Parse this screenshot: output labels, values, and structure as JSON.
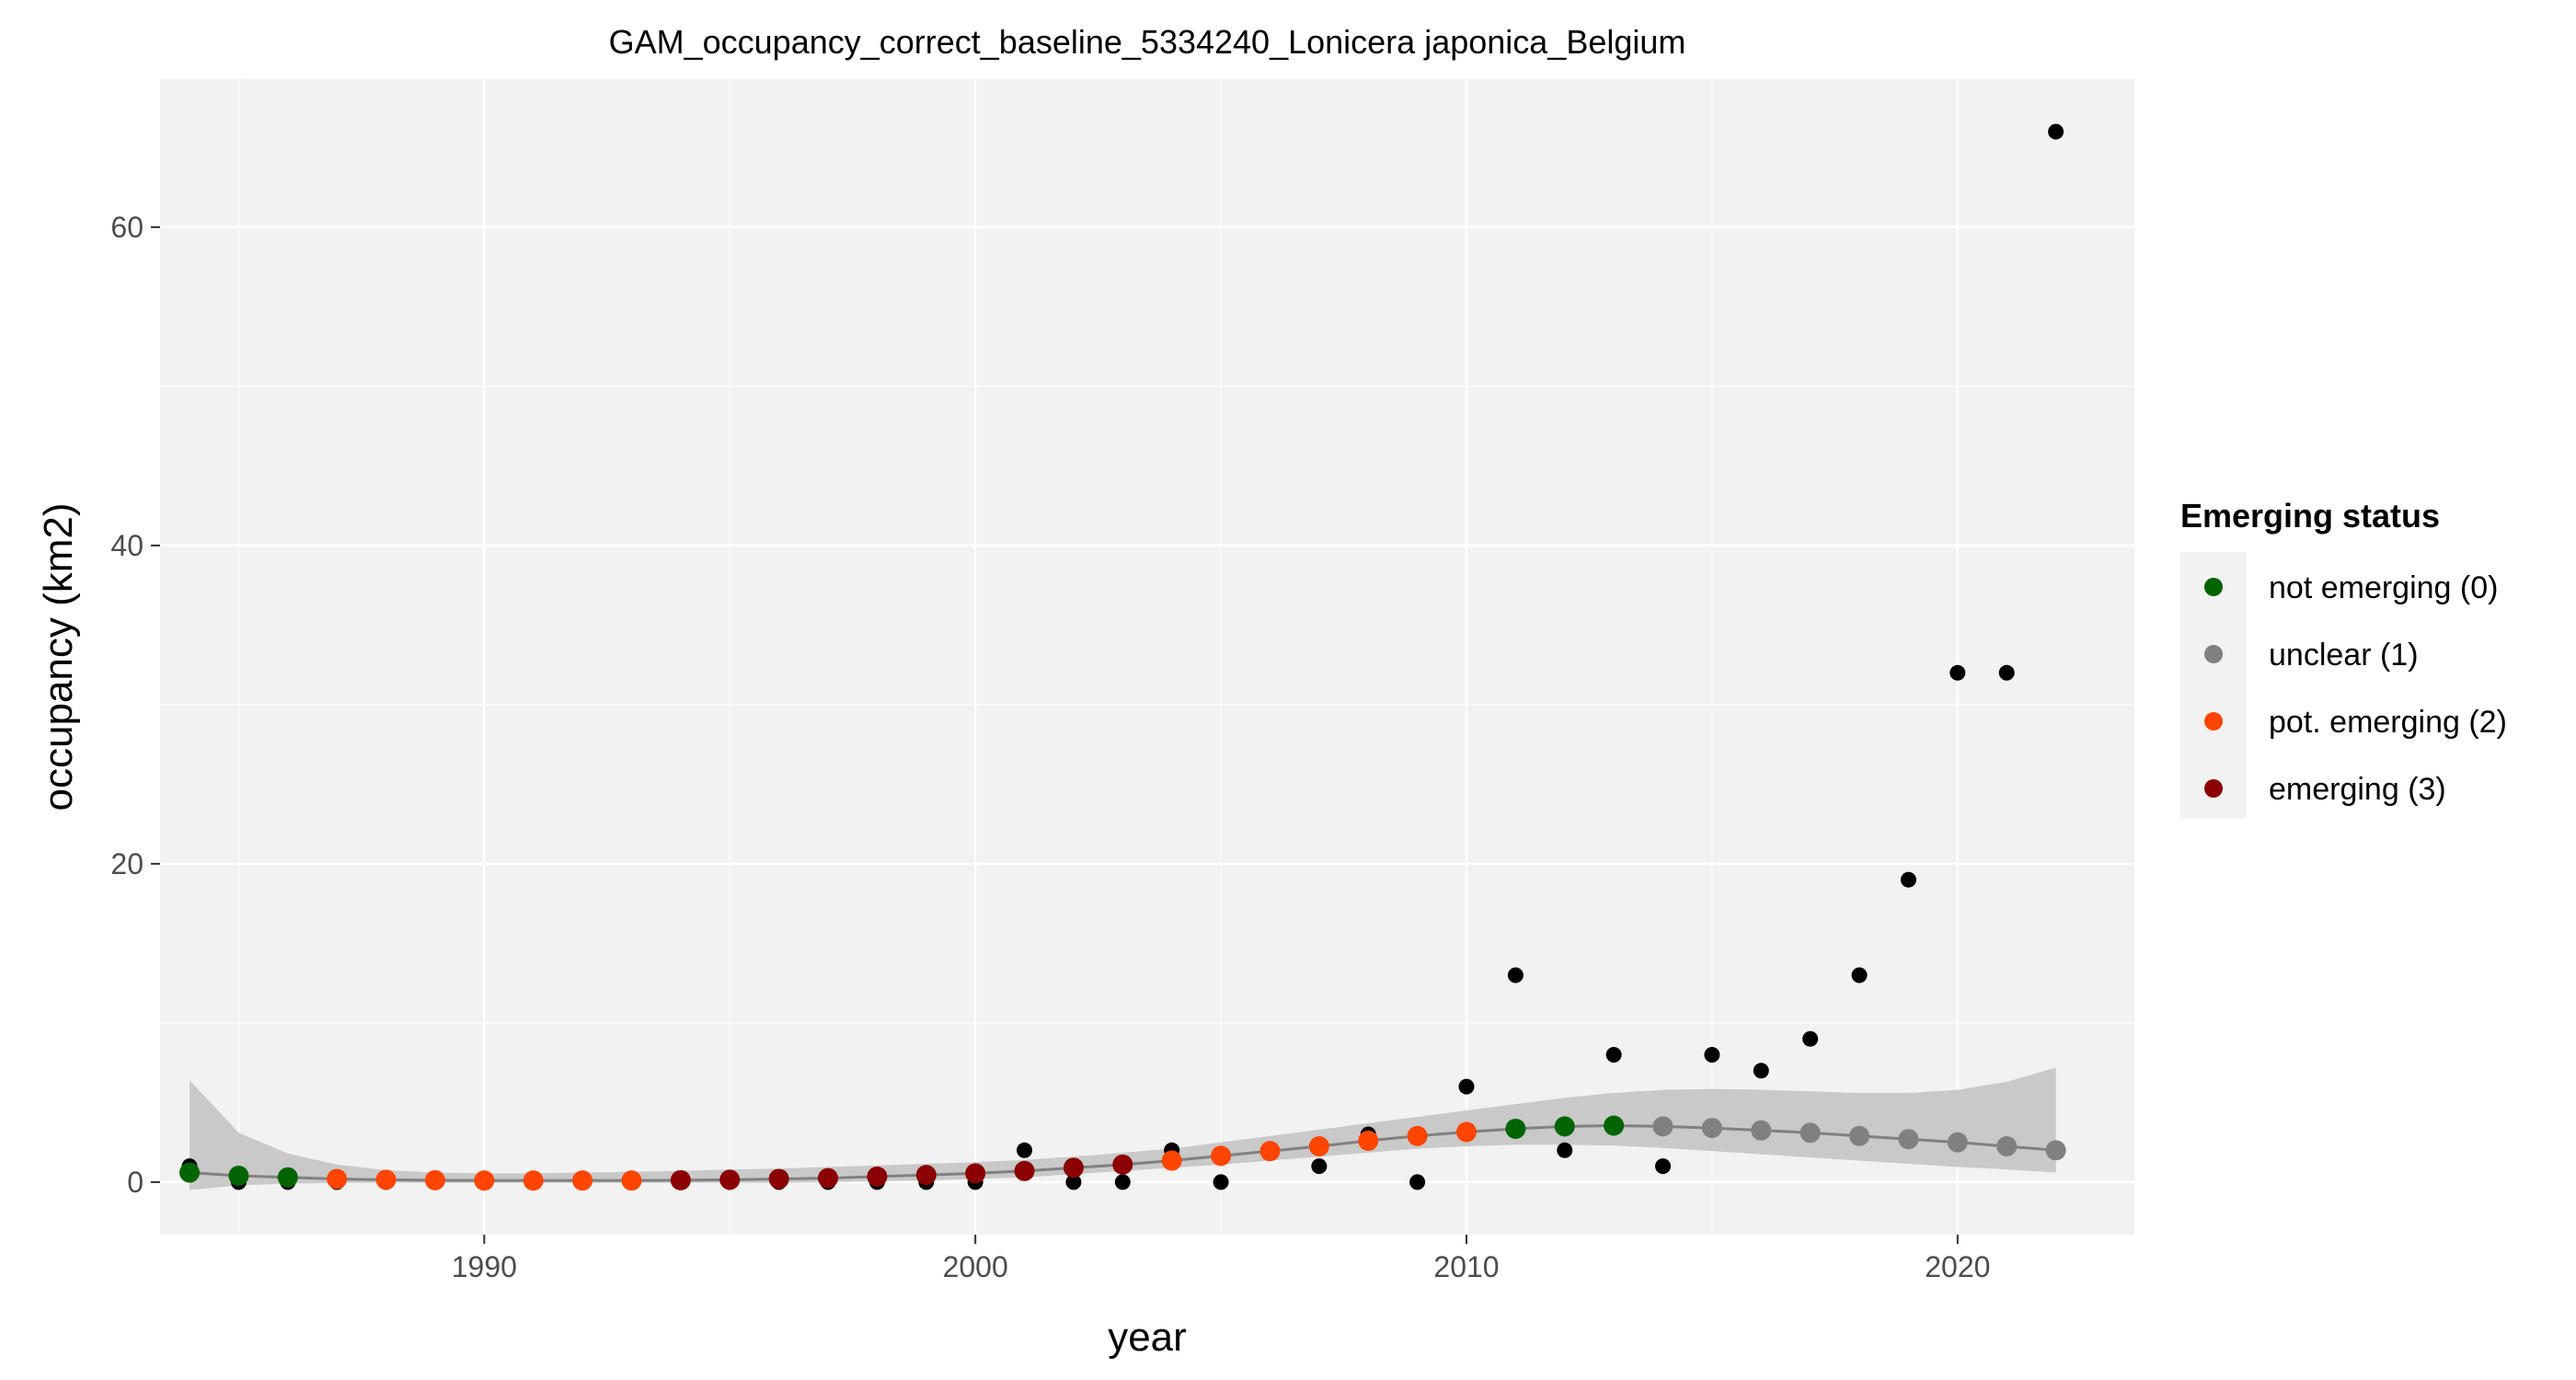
{
  "chart_data": {
    "type": "scatter",
    "title": "GAM_occupancy_correct_baseline_5334240_Lonicera japonica_Belgium",
    "xlabel": "year",
    "ylabel": "occupancy (km2)",
    "xlim": [
      1983.4,
      2023.6
    ],
    "ylim": [
      -3.3,
      69.3
    ],
    "x_ticks": [
      1990,
      2000,
      2010,
      2020
    ],
    "y_ticks": [
      0,
      20,
      40,
      60
    ],
    "grid": true,
    "legend": {
      "title": "Emerging status",
      "position": "right",
      "entries": [
        {
          "label": "not emerging (0)",
          "color": "#006400"
        },
        {
          "label": "unclear (1)",
          "color": "#808080"
        },
        {
          "label": "pot. emerging (2)",
          "color": "#ff4500"
        },
        {
          "label": "emerging (3)",
          "color": "#8b0000"
        }
      ]
    },
    "observed": {
      "color": "#000000",
      "x": [
        1984,
        1985,
        1986,
        1987,
        1988,
        1989,
        1990,
        1991,
        1992,
        1993,
        1994,
        1995,
        1996,
        1997,
        1998,
        1999,
        2000,
        2001,
        2002,
        2003,
        2004,
        2005,
        2006,
        2007,
        2008,
        2009,
        2010,
        2011,
        2012,
        2013,
        2014,
        2015,
        2016,
        2017,
        2018,
        2019,
        2020,
        2021,
        2022
      ],
      "y": [
        1,
        0,
        0,
        0,
        0,
        0,
        0,
        0,
        0,
        0,
        0,
        0,
        0,
        0,
        0,
        0,
        0,
        2,
        0,
        0,
        2,
        0,
        2,
        1,
        3,
        0,
        6,
        13,
        2,
        8,
        1,
        8,
        7,
        9,
        13,
        19,
        32,
        32,
        66
      ]
    },
    "fitted": {
      "line_color": "#808080",
      "band_color": "#c4c4c4",
      "x": [
        1984,
        1985,
        1986,
        1987,
        1988,
        1989,
        1990,
        1991,
        1992,
        1993,
        1994,
        1995,
        1996,
        1997,
        1998,
        1999,
        2000,
        2001,
        2002,
        2003,
        2004,
        2005,
        2006,
        2007,
        2008,
        2009,
        2010,
        2011,
        2012,
        2013,
        2014,
        2015,
        2016,
        2017,
        2018,
        2019,
        2020,
        2021,
        2022
      ],
      "y": [
        0.6,
        0.4,
        0.3,
        0.2,
        0.15,
        0.12,
        0.1,
        0.1,
        0.1,
        0.1,
        0.12,
        0.15,
        0.2,
        0.25,
        0.35,
        0.45,
        0.55,
        0.7,
        0.9,
        1.1,
        1.35,
        1.65,
        1.95,
        2.25,
        2.6,
        2.9,
        3.15,
        3.35,
        3.5,
        3.55,
        3.5,
        3.4,
        3.25,
        3.1,
        2.9,
        2.7,
        2.5,
        2.25,
        2.0
      ],
      "lower": [
        -0.5,
        -0.2,
        -0.1,
        -0.05,
        -0.05,
        -0.05,
        -0.05,
        -0.05,
        -0.05,
        -0.05,
        -0.05,
        -0.05,
        -0.05,
        0.0,
        0.05,
        0.1,
        0.2,
        0.3,
        0.5,
        0.7,
        0.9,
        1.1,
        1.35,
        1.6,
        1.85,
        2.1,
        2.25,
        2.35,
        2.35,
        2.3,
        2.15,
        1.95,
        1.75,
        1.55,
        1.35,
        1.15,
        0.95,
        0.8,
        0.6
      ],
      "upper": [
        6.4,
        3.1,
        1.8,
        1.1,
        0.75,
        0.6,
        0.55,
        0.55,
        0.6,
        0.65,
        0.7,
        0.8,
        0.85,
        0.95,
        1.05,
        1.15,
        1.25,
        1.4,
        1.6,
        1.85,
        2.1,
        2.5,
        2.9,
        3.3,
        3.7,
        4.1,
        4.5,
        4.9,
        5.3,
        5.6,
        5.8,
        5.85,
        5.8,
        5.7,
        5.6,
        5.6,
        5.8,
        6.3,
        7.2
      ],
      "status": [
        0,
        0,
        0,
        2,
        2,
        2,
        2,
        2,
        2,
        2,
        3,
        3,
        3,
        3,
        3,
        3,
        3,
        3,
        3,
        3,
        2,
        2,
        2,
        2,
        2,
        2,
        2,
        0,
        0,
        0,
        1,
        1,
        1,
        1,
        1,
        1,
        1,
        1,
        1
      ]
    }
  }
}
